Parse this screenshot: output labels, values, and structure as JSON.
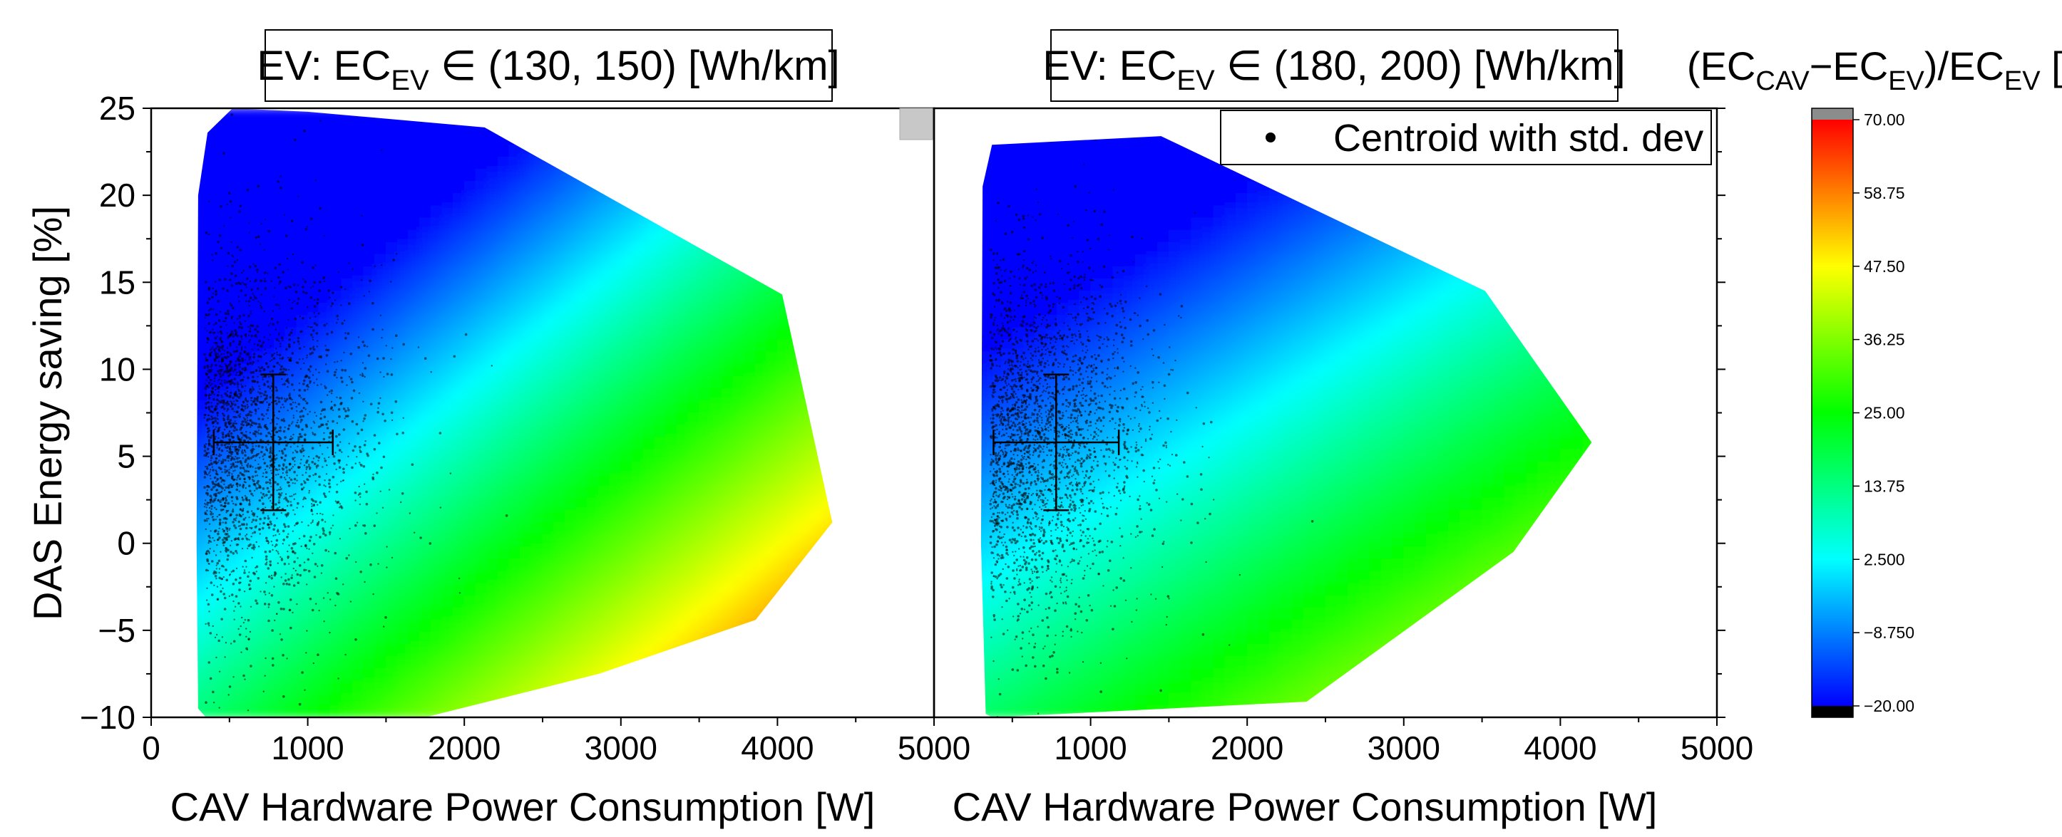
{
  "colors": {
    "colormap": [
      "#0000ff",
      "#00ffff",
      "#00ff00",
      "#ffff00",
      "#ff0000"
    ],
    "over": "#8c8c8c",
    "under": "#000000",
    "scatter": "#000000"
  },
  "chart_data": [
    {
      "type": "heatmap",
      "panel": "left",
      "title": "EV: EC_EV ∈ (130, 150) [Wh/km]",
      "title_parts": {
        "prefix": "EV: EC",
        "sub": "EV",
        "suffix": " ∈ (130, 150) [Wh/km]"
      },
      "xlabel": "CAV Hardware Power Consumption [W]",
      "ylabel": "DAS Energy saving [%]",
      "xlim": [
        0,
        5000
      ],
      "ylim": [
        -10,
        25
      ],
      "xticks": [
        0,
        1000,
        2000,
        3000,
        4000,
        5000
      ],
      "yticks": [
        -10,
        -5,
        0,
        5,
        10,
        15,
        20,
        25
      ],
      "hull": [
        [
          300,
          -9.5
        ],
        [
          290,
          0
        ],
        [
          300,
          20
        ],
        [
          360,
          23.6
        ],
        [
          520,
          25
        ],
        [
          1000,
          24.8
        ],
        [
          2130,
          23.9
        ],
        [
          4030,
          14.3
        ],
        [
          4350,
          1.2
        ],
        [
          3860,
          -4.4
        ],
        [
          2860,
          -7.5
        ],
        [
          1750,
          -10
        ],
        [
          350,
          -10
        ]
      ],
      "field": {
        "x_coef": 0.0138,
        "y_coef": -1.9,
        "offset": -8.3
      },
      "centroid": {
        "x": 780,
        "y": 5.8,
        "x_std": 380,
        "y_std": 3.9
      },
      "density": {
        "x_mode": 340,
        "y_mode": 6
      }
    },
    {
      "type": "heatmap",
      "panel": "right",
      "title": "EV: EC_EV ∈ (180, 200) [Wh/km]",
      "title_parts": {
        "prefix": "EV: EC",
        "sub": "EV",
        "suffix": " ∈ (180, 200) [Wh/km]"
      },
      "xlabel": "CAV Hardware Power Consumption [W]",
      "ylabel": "",
      "xlim": [
        0,
        5000
      ],
      "ylim": [
        -10,
        25
      ],
      "xticks": [
        1000,
        2000,
        3000,
        4000,
        5000
      ],
      "xtick_left_label": "5000",
      "yticks": [
        -10,
        -5,
        0,
        5,
        10,
        15,
        20,
        25
      ],
      "hull": [
        [
          330,
          -9.8
        ],
        [
          300,
          0
        ],
        [
          310,
          20.5
        ],
        [
          370,
          22.9
        ],
        [
          1450,
          23.4
        ],
        [
          3520,
          14.5
        ],
        [
          4200,
          5.8
        ],
        [
          3700,
          -0.5
        ],
        [
          2380,
          -9.1
        ],
        [
          370,
          -10
        ]
      ],
      "field": {
        "x_coef": 0.0095,
        "y_coef": -1.7,
        "offset": -4.0
      },
      "centroid": {
        "x": 780,
        "y": 5.8,
        "x_std": 400,
        "y_std": 3.9
      },
      "density": {
        "x_mode": 360,
        "y_mode": 6
      }
    }
  ],
  "legend": {
    "label": "Centroid with std. dev"
  },
  "colorbar": {
    "title_parts": {
      "open": "(EC",
      "sub1": "CAV",
      "mid": "−EC",
      "sub2": "EV",
      "close": ")/EC",
      "sub3": "EV",
      "unit": " [%]"
    },
    "ticks": [
      "70.00",
      "58.75",
      "47.50",
      "36.25",
      "25.00",
      "13.75",
      "2.500",
      "−8.750",
      "−20.00"
    ],
    "range": [
      -20,
      70
    ]
  }
}
